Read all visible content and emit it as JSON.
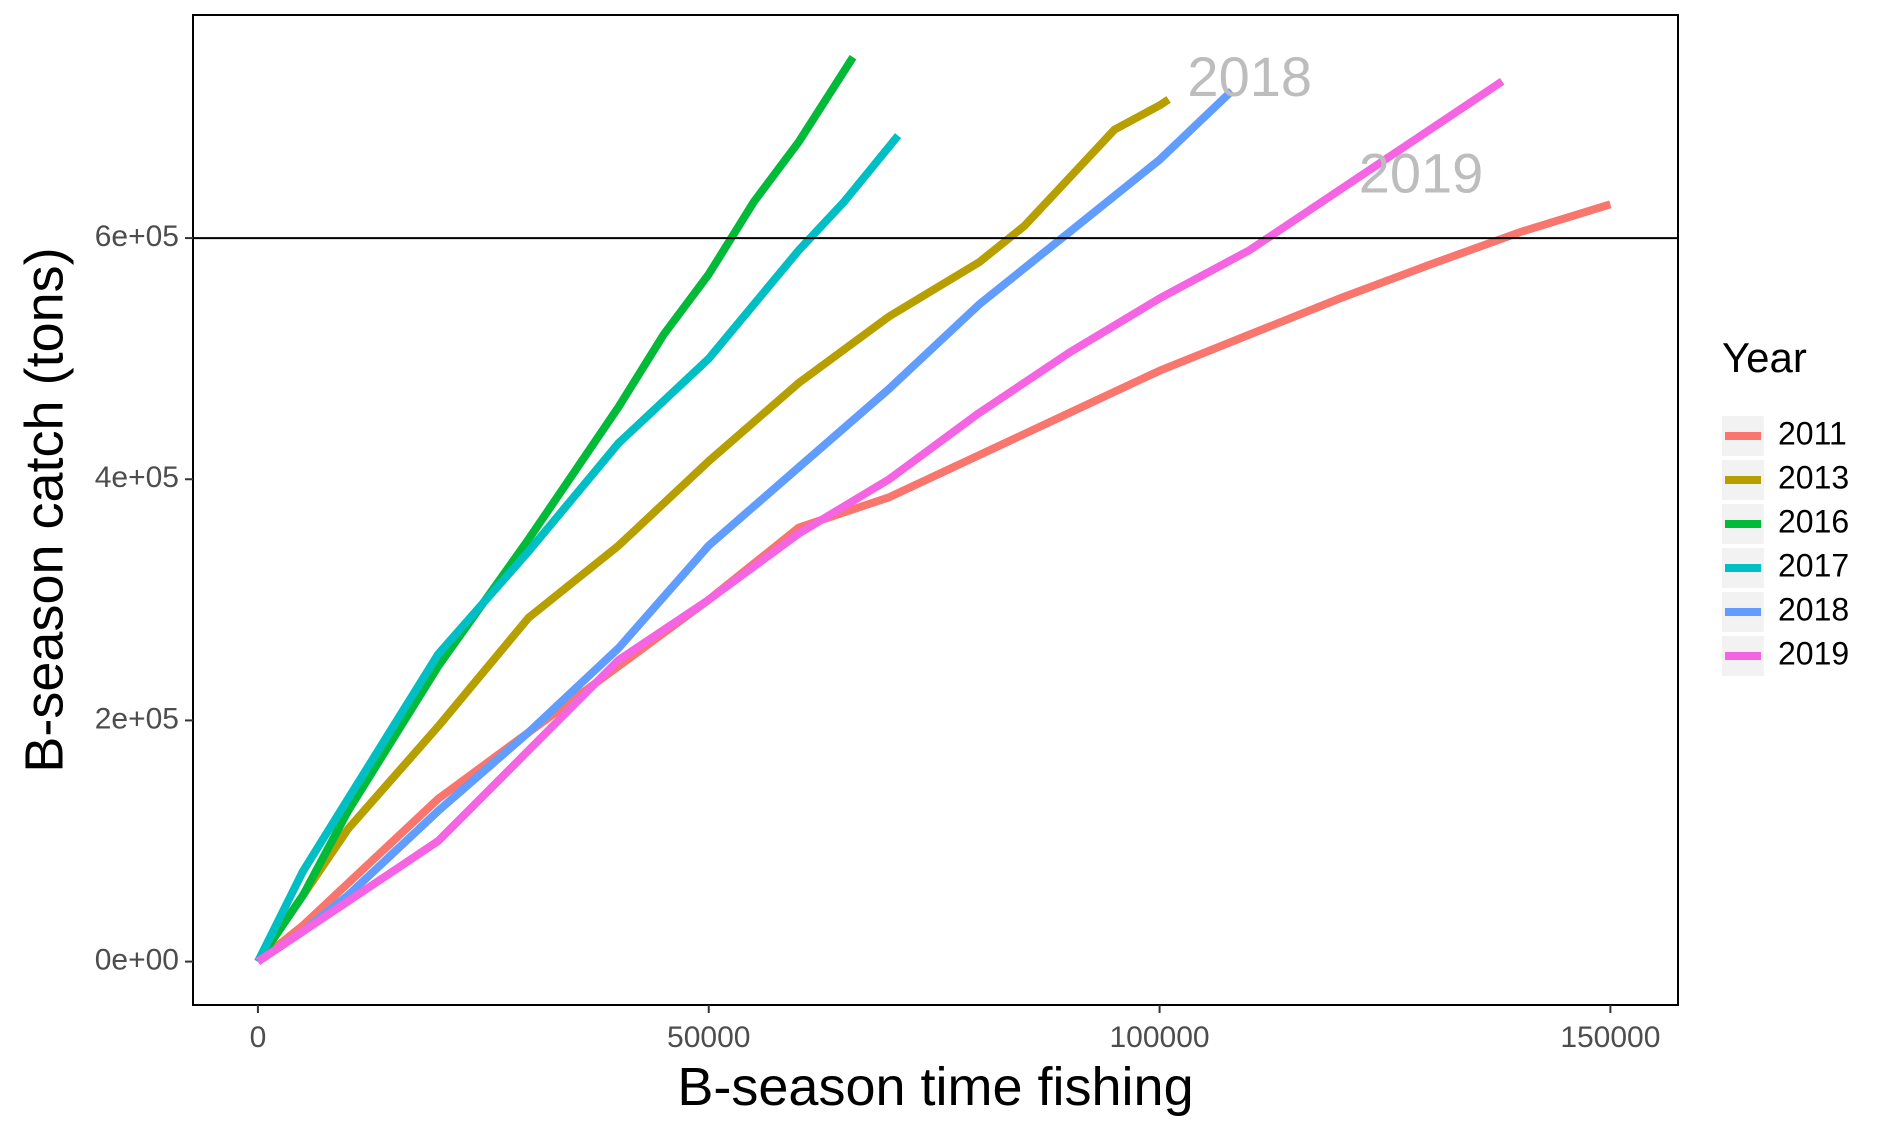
{
  "chart_data": {
    "type": "line",
    "xlabel": "B-season time fishing",
    "ylabel": "B-season catch (tons)",
    "xlim": [
      -7200,
      157500
    ],
    "ylim": [
      -36000,
      785000
    ],
    "x_ticks": [
      0,
      50000,
      100000,
      150000
    ],
    "x_tick_labels": [
      "0",
      "50000",
      "100000",
      "150000"
    ],
    "y_ticks": [
      0,
      200000,
      400000,
      600000
    ],
    "y_tick_labels": [
      "0e+00",
      "2e+05",
      "4e+05",
      "6e+05"
    ],
    "hline": 600000,
    "grid": false,
    "legend": {
      "title": "Year",
      "position": "right"
    },
    "annotations": [
      {
        "text": "2018",
        "x": 110000,
        "y": 730000
      },
      {
        "text": "2019",
        "x": 129000,
        "y": 650000
      }
    ],
    "series": [
      {
        "name": "2011",
        "color": "#F8766D",
        "x": [
          0,
          5000,
          10000,
          20000,
          30000,
          40000,
          50000,
          60000,
          70000,
          80000,
          90000,
          100000,
          110000,
          120000,
          130000,
          140000,
          150000
        ],
        "y": [
          0,
          30000,
          65000,
          135000,
          190000,
          245000,
          300000,
          360000,
          385000,
          420000,
          455000,
          490000,
          520000,
          550000,
          578000,
          605000,
          628000
        ]
      },
      {
        "name": "2013",
        "color": "#B79F00",
        "x": [
          0,
          5000,
          10000,
          20000,
          30000,
          40000,
          50000,
          60000,
          70000,
          80000,
          85000,
          90000,
          95000,
          100000,
          101000
        ],
        "y": [
          0,
          55000,
          110000,
          195000,
          285000,
          345000,
          415000,
          480000,
          535000,
          580000,
          610000,
          650000,
          690000,
          710000,
          715000
        ]
      },
      {
        "name": "2016",
        "color": "#00BA38",
        "x": [
          0,
          5000,
          10000,
          20000,
          30000,
          40000,
          45000,
          50000,
          55000,
          60000,
          66000
        ],
        "y": [
          0,
          55000,
          125000,
          245000,
          350000,
          460000,
          520000,
          570000,
          630000,
          680000,
          750000
        ]
      },
      {
        "name": "2017",
        "color": "#00BFC4",
        "x": [
          0,
          5000,
          10000,
          20000,
          30000,
          40000,
          50000,
          60000,
          65000,
          71000
        ],
        "y": [
          0,
          75000,
          135000,
          255000,
          340000,
          430000,
          500000,
          590000,
          630000,
          685000
        ]
      },
      {
        "name": "2018",
        "color": "#619CFF",
        "x": [
          0,
          5000,
          10000,
          20000,
          30000,
          40000,
          50000,
          60000,
          70000,
          80000,
          90000,
          100000,
          108000
        ],
        "y": [
          0,
          25000,
          55000,
          125000,
          190000,
          260000,
          345000,
          410000,
          475000,
          545000,
          605000,
          665000,
          722000
        ]
      },
      {
        "name": "2019",
        "color": "#F564E3",
        "x": [
          0,
          5000,
          10000,
          20000,
          30000,
          40000,
          50000,
          60000,
          70000,
          80000,
          90000,
          100000,
          110000,
          120000,
          130000,
          138000
        ],
        "y": [
          0,
          25000,
          50000,
          100000,
          175000,
          250000,
          300000,
          355000,
          400000,
          455000,
          505000,
          550000,
          590000,
          640000,
          690000,
          730000
        ]
      }
    ]
  }
}
